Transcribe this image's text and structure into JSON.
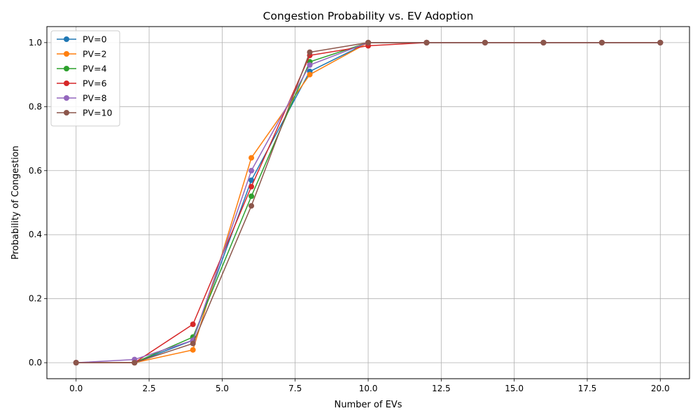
{
  "chart_data": {
    "type": "line",
    "title": "Congestion Probability vs. EV Adoption",
    "xlabel": "Number of EVs",
    "ylabel": "Probability of Congestion",
    "x": [
      0,
      2,
      4,
      6,
      8,
      10,
      12,
      14,
      16,
      18,
      20
    ],
    "xlim": [
      -1,
      21
    ],
    "ylim": [
      -0.05,
      1.05
    ],
    "xticks": [
      0,
      2.5,
      5,
      7.5,
      10,
      12.5,
      15,
      17.5,
      20
    ],
    "xtick_labels": [
      "0.0",
      "2.5",
      "5.0",
      "7.5",
      "10.0",
      "12.5",
      "15.0",
      "17.5",
      "20.0"
    ],
    "yticks": [
      0,
      0.2,
      0.4,
      0.6,
      0.8,
      1.0
    ],
    "ytick_labels": [
      "0.0",
      "0.2",
      "0.4",
      "0.6",
      "0.8",
      "1.0"
    ],
    "grid": true,
    "legend_position": "top-left",
    "series": [
      {
        "name": "PV=0",
        "color": "#1f77b4",
        "values": [
          0,
          0,
          0.07,
          0.57,
          0.91,
          1.0,
          1.0,
          1.0,
          1.0,
          1.0,
          1.0
        ]
      },
      {
        "name": "PV=2",
        "color": "#ff7f0e",
        "values": [
          0,
          0,
          0.04,
          0.64,
          0.9,
          1.0,
          1.0,
          1.0,
          1.0,
          1.0,
          1.0
        ]
      },
      {
        "name": "PV=4",
        "color": "#2ca02c",
        "values": [
          0,
          0,
          0.08,
          0.52,
          0.94,
          1.0,
          1.0,
          1.0,
          1.0,
          1.0,
          1.0
        ]
      },
      {
        "name": "PV=6",
        "color": "#d62728",
        "values": [
          0,
          0,
          0.12,
          0.55,
          0.96,
          0.99,
          1.0,
          1.0,
          1.0,
          1.0,
          1.0
        ]
      },
      {
        "name": "PV=8",
        "color": "#9467bd",
        "values": [
          0,
          0.01,
          0.07,
          0.6,
          0.93,
          1.0,
          1.0,
          1.0,
          1.0,
          1.0,
          1.0
        ]
      },
      {
        "name": "PV=10",
        "color": "#8c564b",
        "values": [
          0,
          0,
          0.06,
          0.49,
          0.97,
          1.0,
          1.0,
          1.0,
          1.0,
          1.0,
          1.0
        ]
      }
    ]
  }
}
